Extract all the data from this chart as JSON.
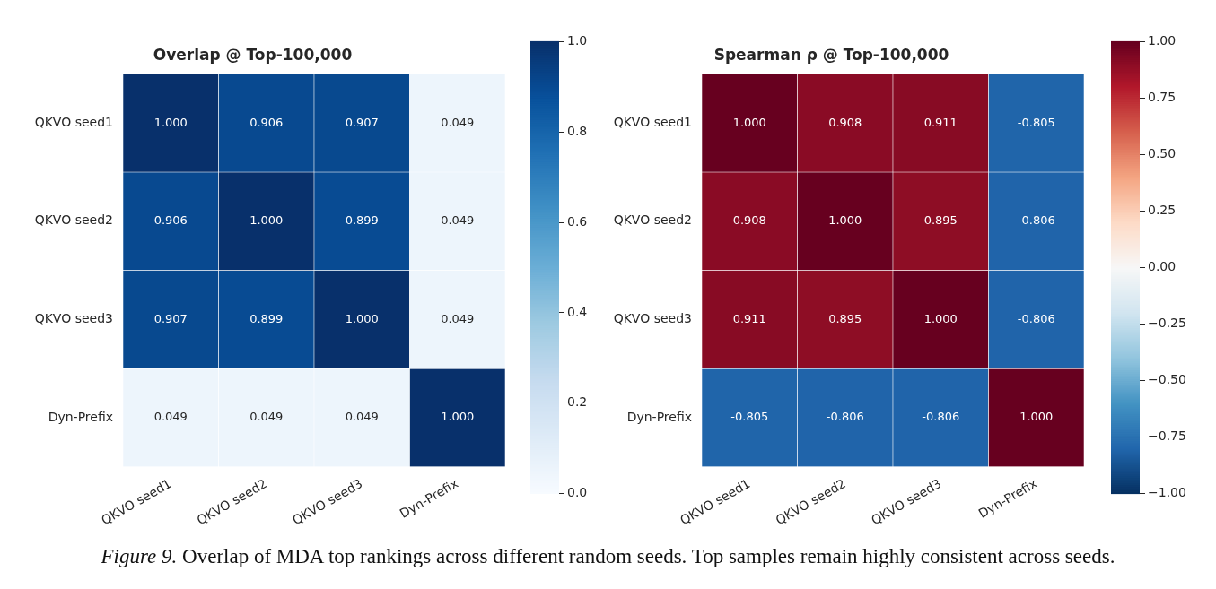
{
  "chart_data": [
    {
      "type": "heatmap",
      "title": "Overlap @ Top-100,000",
      "categories": [
        "QKVO seed1",
        "QKVO seed2",
        "QKVO seed3",
        "Dyn-Prefix"
      ],
      "y_categories": [
        "QKVO seed1",
        "QKVO seed2",
        "QKVO seed3",
        "Dyn-Prefix"
      ],
      "cells": [
        [
          1.0,
          0.906,
          0.907,
          0.049
        ],
        [
          0.906,
          1.0,
          0.899,
          0.049
        ],
        [
          0.907,
          0.899,
          1.0,
          0.049
        ],
        [
          0.049,
          0.049,
          0.049,
          1.0
        ]
      ],
      "cell_labels": [
        [
          "1.000",
          "0.906",
          "0.907",
          "0.049"
        ],
        [
          "0.906",
          "1.000",
          "0.899",
          "0.049"
        ],
        [
          "0.907",
          "0.899",
          "1.000",
          "0.049"
        ],
        [
          "0.049",
          "0.049",
          "0.049",
          "1.000"
        ]
      ],
      "clim": [
        0,
        1
      ],
      "cticks": [
        {
          "value": 0,
          "label": "0.0"
        },
        0.2,
        0.4,
        0.6,
        0.8,
        {
          "value": 1,
          "label": "1.0"
        }
      ]
    },
    {
      "type": "heatmap",
      "title": "Spearman ρ @ Top-100,000",
      "categories": [
        "QKVO seed1",
        "QKVO seed2",
        "QKVO seed3",
        "Dyn-Prefix"
      ],
      "y_categories": [
        "QKVO seed1",
        "QKVO seed2",
        "QKVO seed3",
        "Dyn-Prefix"
      ],
      "cells": [
        [
          1.0,
          0.908,
          0.911,
          -0.805
        ],
        [
          0.908,
          1.0,
          0.895,
          -0.806
        ],
        [
          0.911,
          0.895,
          1.0,
          -0.806
        ],
        [
          -0.805,
          -0.806,
          -0.806,
          1.0
        ]
      ],
      "cell_labels": [
        [
          "1.000",
          "0.908",
          "0.911",
          "-0.805"
        ],
        [
          "0.908",
          "1.000",
          "0.895",
          "-0.806"
        ],
        [
          "0.911",
          "0.895",
          "1.000",
          "-0.806"
        ],
        [
          "-0.805",
          "-0.806",
          "-0.806",
          "1.000"
        ]
      ],
      "clim": [
        -1,
        1
      ],
      "cticks": [
        {
          "value": -1,
          "label": "−1.00"
        },
        {
          "value": -0.75,
          "label": "−0.75"
        },
        {
          "value": -0.5,
          "label": "−0.50"
        },
        {
          "value": -0.25,
          "label": "−0.25"
        },
        {
          "value": 0,
          "label": "0.00"
        },
        0.25,
        {
          "value": 0.5,
          "label": "0.50"
        },
        0.75,
        {
          "value": 1,
          "label": "1.00"
        }
      ],
      "annotations": [
        "Figure 9. Overlap of MDA top rankings across different random seeds. Top samples remain highly consistent across seeds."
      ]
    }
  ]
}
